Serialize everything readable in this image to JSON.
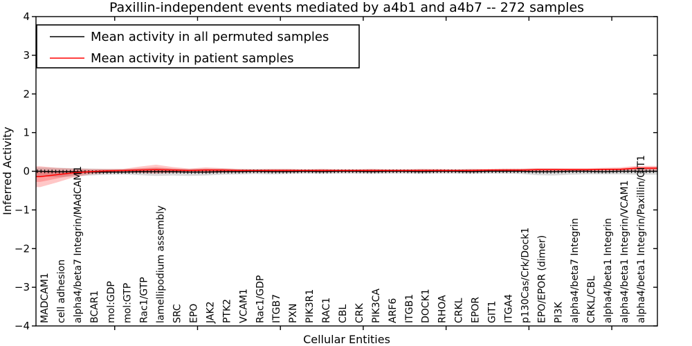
{
  "chart_data": {
    "type": "line",
    "title": "Paxillin-independent events mediated by a4b1 and a4b7 -- 272 samples",
    "xlabel": "Cellular Entities",
    "ylabel": "Inferred Activity",
    "ylim": [
      -4,
      4
    ],
    "yticks": [
      4,
      3,
      2,
      1,
      0,
      -1,
      -2,
      -3,
      -4
    ],
    "ytick_labels": [
      "4",
      "3",
      "2",
      "1",
      "0",
      "−1",
      "−2",
      "−3",
      "−4"
    ],
    "x_major_ticks": [
      4.5,
      9.5,
      14.5,
      19.5,
      24.5,
      29.5,
      34.5
    ],
    "grid": false,
    "legend_position": "upper left",
    "categories": [
      "MADCAM1",
      "cell adhesion",
      "alpha4/beta7 Integrin/MAdCAM1",
      "BCAR1",
      "mol:GDP",
      "mol:GTP",
      "Rac1/GTP",
      "lamellipodium assembly",
      "SRC",
      "EPO",
      "JAK2",
      "PTK2",
      "VCAM1",
      "Rac1/GDP",
      "ITGB7",
      "PXN",
      "PIK3R1",
      "RAC1",
      "CBL",
      "CRK",
      "PIK3CA",
      "ARF6",
      "ITGB1",
      "DOCK1",
      "RHOA",
      "CRKL",
      "EPOR",
      "GIT1",
      "ITGA4",
      "p130Cas/Crk/Dock1",
      "EPO/EPOR (dimer)",
      "PI3K",
      "alpha4/beta7 Integrin",
      "CRKL/CBL",
      "alpha4/beta1 Integrin",
      "alpha4/beta1 Integrin/VCAM1",
      "alpha4/beta1 Integrin/Paxillin/GIT1"
    ],
    "series": [
      {
        "id": "permuted",
        "name": "Mean activity in all permuted samples",
        "color": "#000000",
        "band_opacity": 0.15,
        "band_inner": false,
        "marker_ticks": true,
        "values": [
          0.0,
          -0.01,
          -0.01,
          -0.02,
          -0.02,
          -0.02,
          -0.01,
          -0.01,
          -0.01,
          -0.02,
          -0.02,
          -0.01,
          -0.01,
          0.0,
          -0.01,
          -0.01,
          0.0,
          -0.01,
          0.0,
          0.0,
          -0.01,
          0.0,
          0.0,
          -0.01,
          0.0,
          0.0,
          -0.01,
          0.0,
          0.0,
          0.0,
          -0.01,
          -0.01,
          0.0,
          0.0,
          -0.01,
          0.0,
          0.0
        ],
        "band_upper": [
          0.1,
          0.09,
          0.08,
          0.07,
          0.06,
          0.06,
          0.07,
          0.08,
          0.07,
          0.06,
          0.07,
          0.07,
          0.06,
          0.06,
          0.06,
          0.06,
          0.05,
          0.06,
          0.05,
          0.05,
          0.06,
          0.05,
          0.05,
          0.06,
          0.05,
          0.05,
          0.06,
          0.05,
          0.06,
          0.06,
          0.07,
          0.07,
          0.06,
          0.06,
          0.07,
          0.07,
          0.08
        ],
        "band_lower": [
          -0.13,
          -0.15,
          -0.14,
          -0.11,
          -0.09,
          -0.08,
          -0.1,
          -0.12,
          -0.11,
          -0.12,
          -0.11,
          -0.09,
          -0.08,
          -0.07,
          -0.08,
          -0.07,
          -0.06,
          -0.07,
          -0.06,
          -0.06,
          -0.07,
          -0.06,
          -0.06,
          -0.07,
          -0.06,
          -0.06,
          -0.07,
          -0.06,
          -0.06,
          -0.07,
          -0.1,
          -0.11,
          -0.09,
          -0.08,
          -0.08,
          -0.08,
          -0.09
        ]
      },
      {
        "id": "patient",
        "name": "Mean activity in patient samples",
        "color": "#ff0000",
        "band_opacity": 0.22,
        "band_inner": true,
        "marker_ticks": false,
        "values": [
          -0.14,
          -0.09,
          -0.04,
          -0.01,
          0.01,
          0.02,
          0.03,
          0.04,
          0.03,
          0.02,
          0.03,
          0.03,
          0.02,
          0.02,
          0.02,
          0.02,
          0.02,
          0.02,
          0.02,
          0.02,
          0.02,
          0.02,
          0.02,
          0.02,
          0.02,
          0.02,
          0.02,
          0.03,
          0.03,
          0.03,
          0.04,
          0.04,
          0.04,
          0.04,
          0.05,
          0.05,
          0.08
        ],
        "band_upper": [
          0.13,
          0.09,
          0.07,
          0.06,
          0.06,
          0.06,
          0.12,
          0.17,
          0.11,
          0.07,
          0.1,
          0.08,
          0.06,
          0.05,
          0.06,
          0.06,
          0.05,
          0.06,
          0.05,
          0.05,
          0.06,
          0.05,
          0.05,
          0.06,
          0.06,
          0.05,
          0.06,
          0.06,
          0.07,
          0.07,
          0.08,
          0.08,
          0.08,
          0.08,
          0.09,
          0.1,
          0.14
        ],
        "band_lower": [
          -0.41,
          -0.29,
          -0.16,
          -0.08,
          -0.04,
          -0.03,
          -0.04,
          -0.06,
          -0.04,
          -0.03,
          -0.04,
          -0.03,
          -0.02,
          -0.02,
          -0.02,
          -0.02,
          -0.02,
          -0.02,
          -0.02,
          -0.02,
          -0.02,
          -0.02,
          -0.02,
          -0.02,
          -0.02,
          -0.02,
          -0.02,
          -0.01,
          -0.01,
          -0.01,
          0.0,
          0.0,
          0.0,
          0.0,
          0.01,
          0.01,
          0.02
        ]
      }
    ]
  }
}
